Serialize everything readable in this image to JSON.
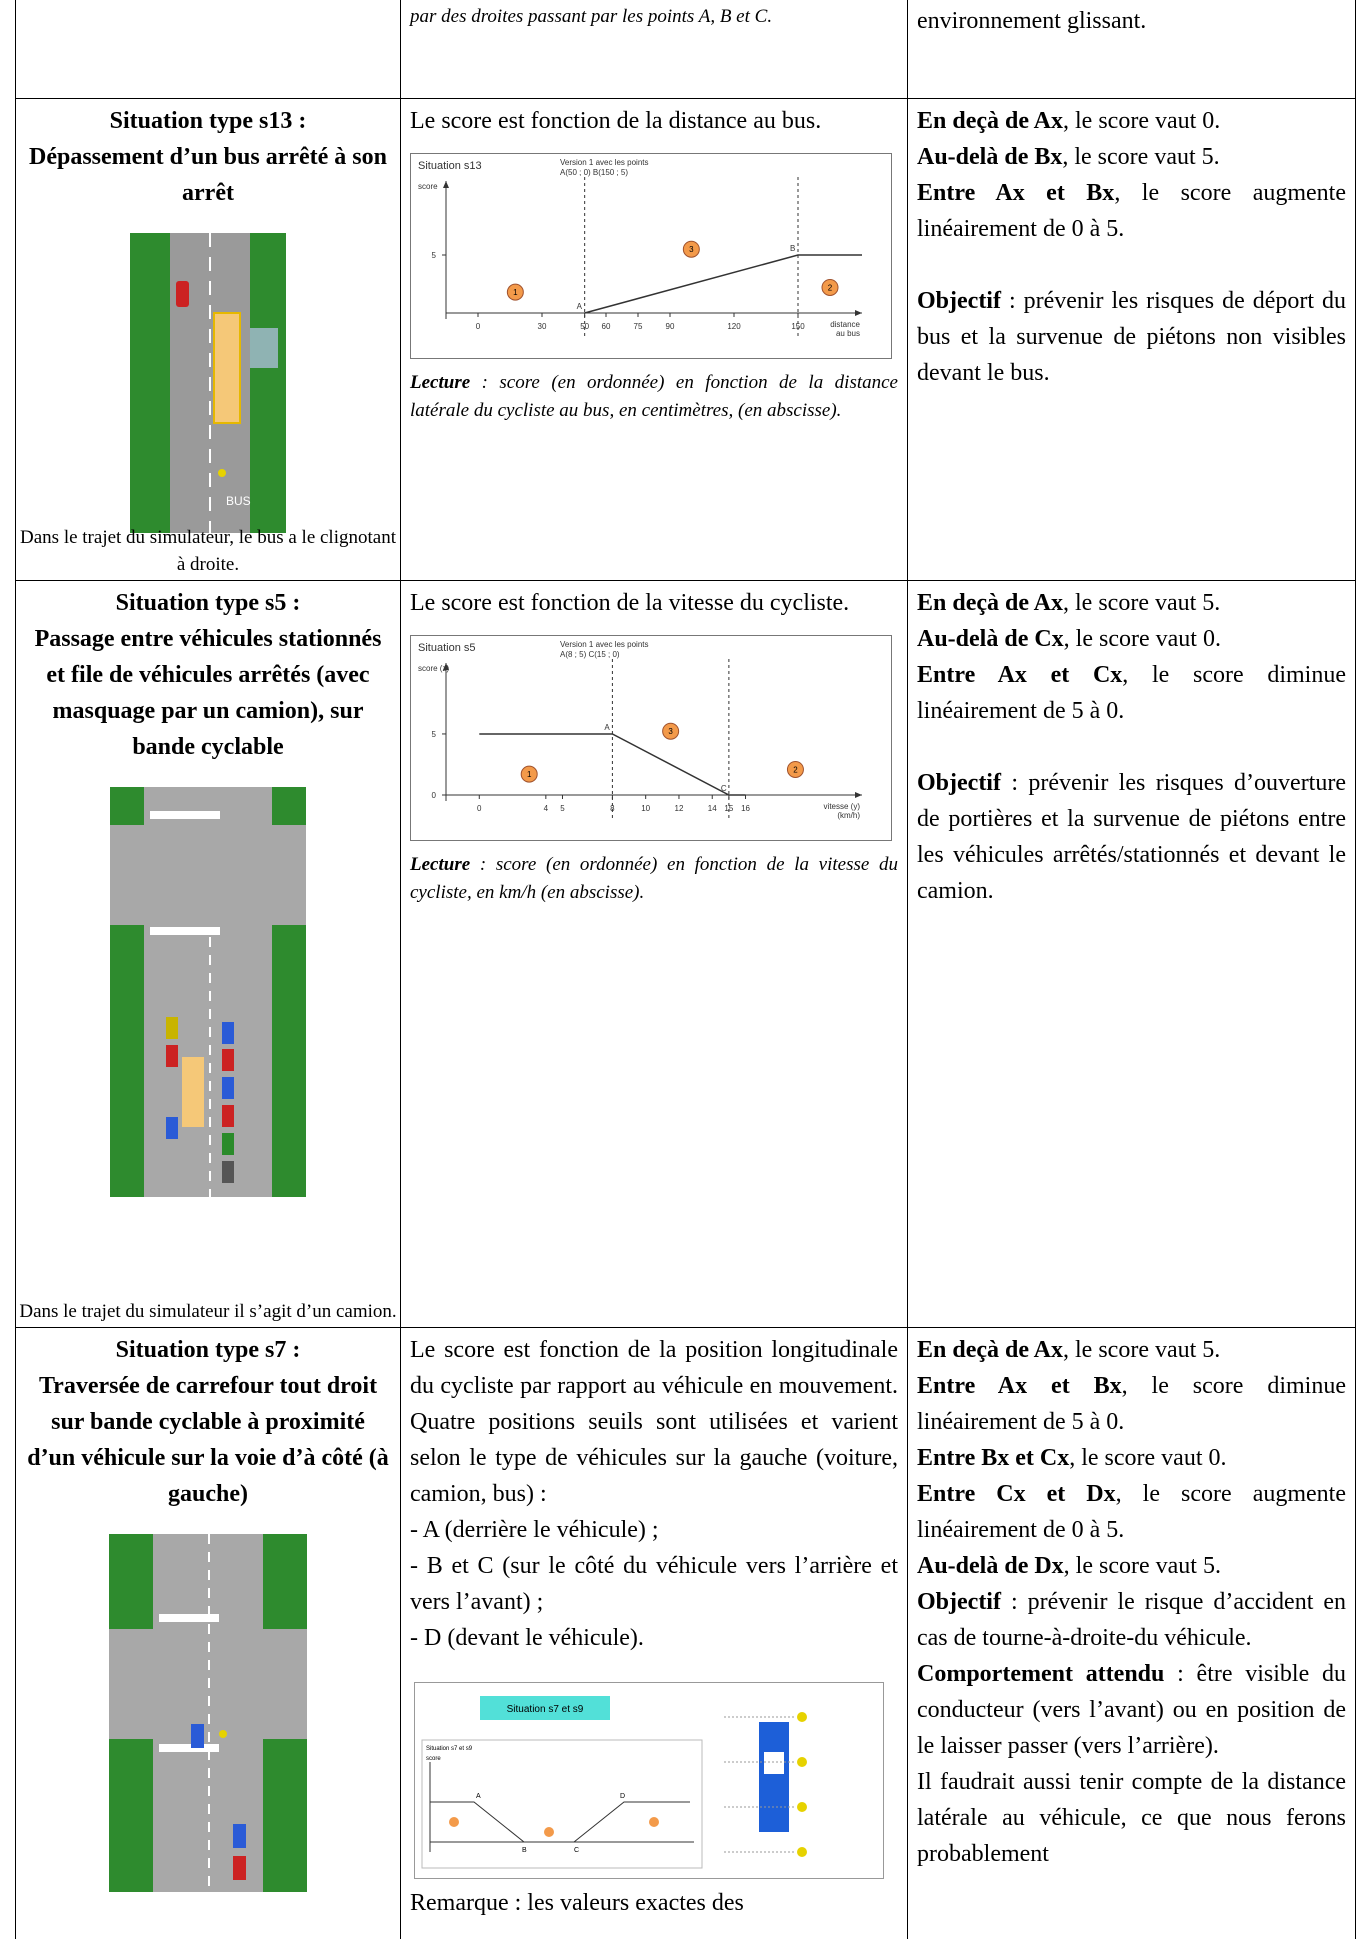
{
  "table": {
    "rows": [
      {
        "col2_italic": "par des droites passant par les points A, B et C.",
        "col3": "environnement glissant."
      },
      {
        "situation": "Situation type s13 :",
        "title": "Dépassement d’un bus arrêté à son arrêt",
        "image_text": "BUS",
        "caption": "Dans le trajet du simulateur, le bus a le clignotant à droite.",
        "description": "Le score est fonction de la distance au bus.",
        "chart": {
          "type": "line",
          "title": "Situation s13",
          "version": [
            "Version 1 avec les points",
            "A(50 ; 0)   B(150 ; 5)"
          ],
          "y_label": "score",
          "x_label": [
            "distance",
            "au bus"
          ],
          "xlim": [
            -15,
            180
          ],
          "ylim": [
            0,
            10
          ],
          "xticks": [
            0,
            30,
            50,
            60,
            75,
            90,
            120,
            150
          ],
          "yticks": [
            5
          ],
          "x": [
            50,
            150,
            180
          ],
          "y": [
            0,
            5,
            5
          ],
          "points": [
            {
              "label": "A",
              "x": 50,
              "y": 0
            },
            {
              "label": "B",
              "x": 150,
              "y": 5
            }
          ],
          "zones": [
            "1",
            "3",
            "2"
          ]
        },
        "reading_lead": "Lecture",
        "reading": " : score (en ordonnée) en fonction de la distance latérale du cycliste au bus, en centimètres, (en abscisse).",
        "rules": [
          {
            "lead": "En deçà de Ax",
            "text": ", le score vaut 0."
          },
          {
            "lead": "Au-delà de Bx",
            "text": ", le score vaut 5."
          },
          {
            "lead": "Entre Ax et Bx",
            "text": ", le score augmente linéairement de 0 à 5."
          }
        ],
        "objective": {
          "lead": "Objectif",
          "text": " : prévenir les risques de déport du bus et la survenue de piétons non visibles devant le bus."
        }
      },
      {
        "situation": "Situation type s5 :",
        "title": "Passage entre véhicules stationnés et file de véhicules arrêtés (avec masquage par un camion), sur bande cyclable",
        "caption": "Dans le trajet du simulateur il s’agit d’un camion.",
        "description": "Le score est fonction de la vitesse du cycliste.",
        "chart": {
          "type": "line",
          "title": "Situation s5",
          "version": [
            "Version 1 avec les points",
            "A(8 ; 5)   C(15 ; 0)"
          ],
          "y_label": "score (z)",
          "x_label": [
            "vitesse (y)",
            "(km/h)"
          ],
          "xlim": [
            -2,
            23
          ],
          "ylim": [
            0,
            9.5
          ],
          "xticks": [
            0,
            4,
            5,
            8,
            10,
            12,
            14,
            15,
            16
          ],
          "yticks": [
            0,
            5
          ],
          "x": [
            0,
            8,
            15,
            16
          ],
          "y": [
            5,
            5,
            0,
            0
          ],
          "points": [
            {
              "label": "A",
              "x": 8,
              "y": 5
            },
            {
              "label": "C",
              "x": 15,
              "y": 0
            }
          ],
          "zones": [
            "1",
            "3",
            "2"
          ]
        },
        "reading_lead": "Lecture",
        "reading": " : score (en ordonnée) en fonction de la vitesse du cycliste, en km/h (en abscisse).",
        "rules": [
          {
            "lead": "En deçà de Ax",
            "text": ", le score vaut 5."
          },
          {
            "lead": "Au-delà de Cx",
            "text": ", le score vaut 0."
          },
          {
            "lead": "Entre Ax et Cx",
            "text": ", le score diminue linéairement de 5 à 0."
          }
        ],
        "objective": {
          "lead": "Objectif",
          "text": " : prévenir les risques d’ouverture de portières et la survenue de piétons entre les véhicules arrêtés/stationnés et devant le camion."
        }
      },
      {
        "situation": "Situation type s7 :",
        "title": "Traversée de carrefour tout droit sur bande cyclable à proximité d’un véhicule sur la voie d’à côté (à gauche)",
        "description": "Le score est fonction de la position longitudinale du cycliste par rapport au véhicule en mouvement. Quatre positions seuils sont utilisées et varient selon le type de véhicules sur la gauche (voiture, camion, bus) :",
        "list": [
          "- A (derrière le véhicule) ;",
          "- B et C (sur le côté du véhicule vers l’arrière et vers l’avant) ;",
          "- D (devant le véhicule)."
        ],
        "chart": {
          "title": "Situation s7 et s9",
          "subtitle": "Situation s7 et s9",
          "y_label": "score",
          "labels": [
            "A",
            "B",
            "C",
            "D"
          ]
        },
        "remark": "Remarque : les valeurs exactes des",
        "rules": [
          {
            "lead": "En deçà de Ax",
            "text": ", le score vaut 5."
          },
          {
            "lead": "Entre Ax et Bx",
            "text": ", le score diminue linéairement de 5 à 0."
          },
          {
            "lead": "Entre Bx et Cx",
            "text": ", le score vaut 0."
          },
          {
            "lead": "Entre Cx et Dx",
            "text": ", le score augmente linéairement de 0 à 5."
          },
          {
            "lead": "Au-delà de Dx",
            "text": ", le score vaut 5."
          }
        ],
        "objective": {
          "lead": "Objectif",
          "text": " : prévenir le risque d’accident en cas de tourne-à-droite-du véhicule."
        },
        "expected": {
          "lead": "Comportement attendu",
          "text": " : être visible du conducteur (vers l’avant) ou en position de le laisser passer (vers l’arrière)."
        },
        "note": "Il faudrait aussi tenir compte de la distance latérale au véhicule, ce que nous ferons probablement"
      }
    ]
  }
}
